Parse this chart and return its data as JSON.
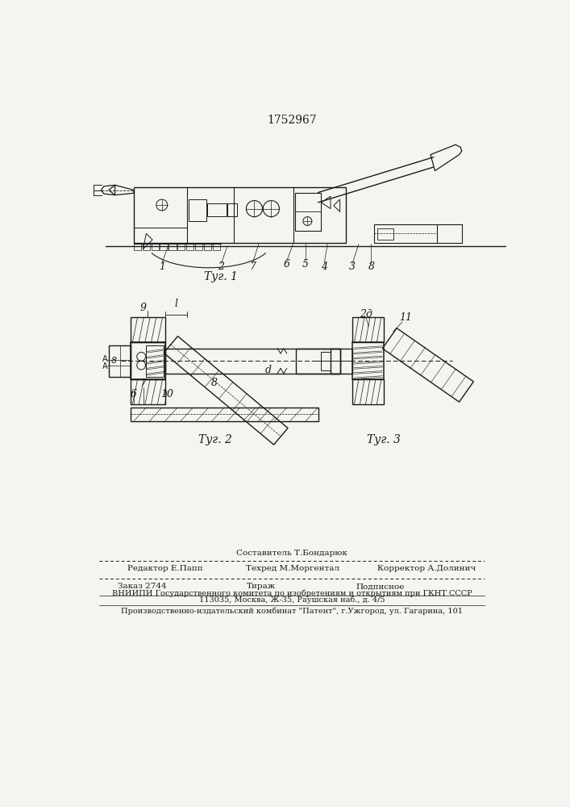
{
  "patent_number": "1752967",
  "bg_color": "#f5f4f1",
  "line_color": "#1a1a1a",
  "fig1_caption": "Τуг. 1",
  "fig2_caption": "Τуг. 2",
  "fig3_caption": "Τуг. 3",
  "footer_line1": "Составитель Т.Бондарюк",
  "footer_editor": "Редактор Е.Папп",
  "footer_tech": "Техред М.Моргентал",
  "footer_corrector": "Корректор А.Долинич",
  "footer_order": "Заказ 2744",
  "footer_tirazh": "Тираж",
  "footer_podp": "Подписное",
  "footer_vniip": "ВНИИПИ Государственного комитета по изобретениям и открытиям при ГКНТ СССР",
  "footer_addr": "113035, Москва, Ж-35, Раушская наб., д. 4/5",
  "footer_prod": "Производственно-издательский комбинат \"Патент\", г.Ужгород, ул. Гагарина, 101"
}
